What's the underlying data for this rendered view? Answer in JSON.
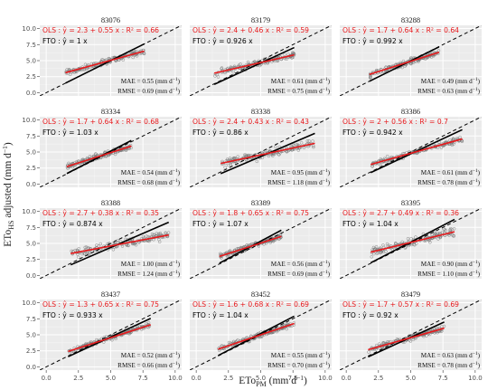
{
  "figure": {
    "xlabel_main": "ETo",
    "xlabel_sub": "PM",
    "xlabel_unit": " (mm d",
    "xlabel_exp": "−1",
    "xlabel_close": ")",
    "ylabel_main": "ETo",
    "ylabel_sub": "HS",
    "ylabel_rest": " adjusted (mm d",
    "ylabel_exp": "−1",
    "ylabel_close": ")",
    "ols_prefix": "OLS : ",
    "fto_prefix": "FTO : ",
    "yhat": "ŷ",
    "mae_prefix": "MAE = ",
    "rmse_prefix": "RMSE = ",
    "unit": " (mm d",
    "unit_exp": "−1",
    "unit_close": ")"
  },
  "chart_data": {
    "type": "scatter",
    "grid": true,
    "xlim": [
      -0.5,
      10.5
    ],
    "ylim": [
      -0.5,
      10.5
    ],
    "x_ticks": [
      "0.0",
      "2.5",
      "5.0",
      "7.5",
      "10.0"
    ],
    "y_ticks": [
      "0.0",
      "2.5",
      "5.0",
      "7.5",
      "10.0"
    ],
    "colors": {
      "ols": "#e8191c",
      "fto": "#000000",
      "points": "#7a7a7a",
      "panel_bg": "#ebebeb",
      "strip_bg": "#d9d9d9"
    },
    "panels": [
      {
        "station": "83076",
        "ols": "ŷ = 2.3 + 0.55 x : R² = 0.66",
        "fto": "ŷ = 1 x",
        "ols_a": 2.3,
        "ols_b": 0.55,
        "fto_b": 1.0,
        "mae": "0.55",
        "rmse": "0.69",
        "x_range": [
          1.5,
          7.6
        ]
      },
      {
        "station": "83179",
        "ols": "ŷ = 2.4 + 0.46 x : R² = 0.59",
        "fto": "ŷ = 0.926 x",
        "ols_a": 2.4,
        "ols_b": 0.46,
        "fto_b": 0.926,
        "mae": "0.61",
        "rmse": "0.75",
        "x_range": [
          1.4,
          7.6
        ]
      },
      {
        "station": "83288",
        "ols": "ŷ = 1.7 + 0.64 x : R² = 0.64",
        "fto": "ŷ = 0.992 x",
        "ols_a": 1.7,
        "ols_b": 0.64,
        "fto_b": 0.992,
        "mae": "0.49",
        "rmse": "0.63",
        "x_range": [
          1.8,
          7.2
        ]
      },
      {
        "station": "83334",
        "ols": "ŷ = 1.7 + 0.64 x : R² = 0.68",
        "fto": "ŷ = 1.03 x",
        "ols_a": 1.7,
        "ols_b": 0.64,
        "fto_b": 1.03,
        "mae": "0.54",
        "rmse": "0.68",
        "x_range": [
          1.6,
          6.6
        ]
      },
      {
        "station": "83338",
        "ols": "ŷ = 2.4 + 0.43 x : R² = 0.43",
        "fto": "ŷ = 0.86 x",
        "ols_a": 2.4,
        "ols_b": 0.43,
        "fto_b": 0.86,
        "mae": "0.95",
        "rmse": "1.18",
        "x_range": [
          1.9,
          9.2
        ]
      },
      {
        "station": "83386",
        "ols": "ŷ = 2 + 0.56 x : R² = 0.7",
        "fto": "ŷ = 0.942 x",
        "ols_a": 2.0,
        "ols_b": 0.56,
        "fto_b": 0.942,
        "mae": "0.61",
        "rmse": "0.78",
        "x_range": [
          1.9,
          9.0
        ]
      },
      {
        "station": "83388",
        "ols": "ŷ = 2.7 + 0.38 x : R² = 0.35",
        "fto": "ŷ = 0.874 x",
        "ols_a": 2.7,
        "ols_b": 0.38,
        "fto_b": 0.874,
        "mae": "1.00",
        "rmse": "1.24",
        "x_range": [
          1.9,
          9.5
        ]
      },
      {
        "station": "83389",
        "ols": "ŷ = 1.8 + 0.65 x : R² = 0.75",
        "fto": "ŷ = 1.07 x",
        "ols_a": 1.8,
        "ols_b": 0.65,
        "fto_b": 1.07,
        "mae": "0.56",
        "rmse": "0.69",
        "x_range": [
          1.8,
          6.6
        ]
      },
      {
        "station": "83395",
        "ols": "ŷ = 2.7 + 0.49 x : R² = 0.36",
        "fto": "ŷ = 1.04 x",
        "ols_a": 2.7,
        "ols_b": 0.49,
        "fto_b": 1.04,
        "mae": "0.90",
        "rmse": "1.10",
        "x_range": [
          1.9,
          8.4
        ]
      },
      {
        "station": "83437",
        "ols": "ŷ = 1.3 + 0.65 x : R² = 0.75",
        "fto": "ŷ = 0.933 x",
        "ols_a": 1.3,
        "ols_b": 0.65,
        "fto_b": 0.933,
        "mae": "0.52",
        "rmse": "0.66",
        "x_range": [
          1.7,
          8.1
        ]
      },
      {
        "station": "83452",
        "ols": "ŷ = 1.6 + 0.68 x : R² = 0.69",
        "fto": "ŷ = 1.04 x",
        "ols_a": 1.6,
        "ols_b": 0.68,
        "fto_b": 1.04,
        "mae": "0.55",
        "rmse": "0.70",
        "x_range": [
          1.7,
          7.6
        ]
      },
      {
        "station": "83479",
        "ols": "ŷ = 1.7 + 0.57 x : R² = 0.69",
        "fto": "ŷ = 0.92 x",
        "ols_a": 1.7,
        "ols_b": 0.57,
        "fto_b": 0.92,
        "mae": "0.63",
        "rmse": "0.78",
        "x_range": [
          1.7,
          7.6
        ]
      }
    ]
  }
}
